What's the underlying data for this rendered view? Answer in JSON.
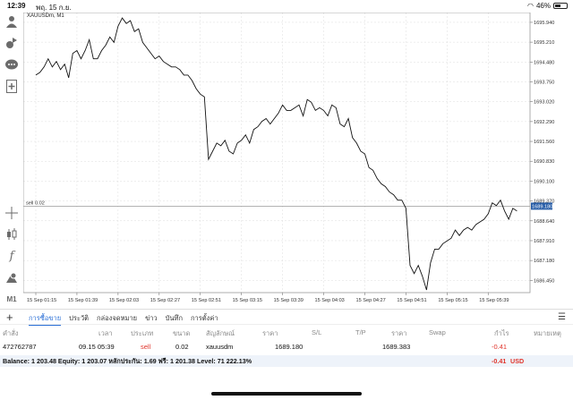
{
  "status": {
    "time": "12:39",
    "date": "พฤ. 15 ก.ย.",
    "battery": "46%",
    "battery_level": 0.46
  },
  "chart": {
    "symbol_label": "XAUUSDm, M1",
    "sell_line_label": "sell 0.02",
    "current_price": "1689.180",
    "colors": {
      "line": "#111111",
      "grid": "#dddddd",
      "price_badge": "#2a5fa8",
      "sell_line": "#999999"
    }
  },
  "chart_data": {
    "type": "line",
    "y_ticks": [
      "1695.940",
      "1695.210",
      "1694.480",
      "1693.750",
      "1693.020",
      "1692.290",
      "1691.560",
      "1690.830",
      "1690.100",
      "1689.370",
      "1688.640",
      "1687.910",
      "1687.180",
      "1686.450"
    ],
    "x_ticks": [
      "15 Sep 01:15",
      "15 Sep 01:39",
      "15 Sep 02:03",
      "15 Sep 02:27",
      "15 Sep 02:51",
      "15 Sep 03:15",
      "15 Sep 03:39",
      "15 Sep 04:03",
      "15 Sep 04:27",
      "15 Sep 04:51",
      "15 Sep 05:15",
      "15 Sep 05:39"
    ],
    "ylim": [
      1686.0,
      1696.3
    ],
    "x_range": [
      0,
      118
    ],
    "x_tick_positions": [
      0,
      10,
      20,
      30,
      40,
      50,
      60,
      70,
      80,
      90,
      100,
      110
    ],
    "sell_level": 1689.18,
    "series": [
      {
        "x": [
          0,
          1,
          2,
          3,
          4,
          5,
          6,
          7,
          8,
          9,
          10,
          11,
          12,
          13,
          14,
          15,
          16,
          17,
          18,
          19,
          20,
          21,
          22,
          23,
          24,
          25,
          26,
          27,
          28,
          29,
          30,
          31,
          32,
          33,
          34,
          35,
          36,
          37,
          38,
          39,
          40,
          41,
          42,
          43,
          44,
          45,
          46,
          47,
          48,
          49,
          50,
          51,
          52,
          53,
          54,
          55,
          56,
          57,
          58,
          59,
          60,
          61,
          62,
          63,
          64,
          65,
          66,
          67,
          68,
          69,
          70,
          71,
          72,
          73,
          74,
          75,
          76,
          77,
          78,
          79,
          80,
          81,
          82,
          83,
          84,
          85,
          86,
          87,
          88,
          89,
          90,
          91,
          92,
          93,
          94,
          95,
          96,
          97,
          98,
          99,
          100,
          101,
          102,
          103,
          104,
          105,
          106,
          107,
          108,
          109,
          110,
          111,
          112,
          113,
          114,
          115,
          116,
          117
        ],
        "values": [
          1694.0,
          1694.1,
          1694.3,
          1694.6,
          1694.3,
          1694.5,
          1694.2,
          1694.4,
          1693.9,
          1694.8,
          1694.9,
          1694.6,
          1694.9,
          1695.3,
          1694.6,
          1694.6,
          1694.9,
          1695.1,
          1695.4,
          1695.2,
          1695.8,
          1696.1,
          1695.9,
          1696.0,
          1695.6,
          1695.7,
          1695.2,
          1695.0,
          1694.8,
          1694.6,
          1694.7,
          1694.5,
          1694.4,
          1694.3,
          1694.3,
          1694.2,
          1694.0,
          1694.0,
          1693.8,
          1693.5,
          1693.3,
          1693.2,
          1690.9,
          1691.2,
          1691.5,
          1691.4,
          1691.6,
          1691.2,
          1691.1,
          1691.5,
          1691.6,
          1691.8,
          1691.5,
          1692.0,
          1692.1,
          1692.3,
          1692.4,
          1692.2,
          1692.4,
          1692.6,
          1692.9,
          1692.7,
          1692.7,
          1692.8,
          1692.9,
          1692.5,
          1693.1,
          1693.0,
          1692.7,
          1692.8,
          1692.7,
          1692.5,
          1692.9,
          1692.8,
          1692.2,
          1692.1,
          1692.4,
          1691.7,
          1691.5,
          1691.2,
          1691.1,
          1690.6,
          1690.5,
          1690.2,
          1690.0,
          1689.9,
          1689.7,
          1689.6,
          1689.4,
          1689.4,
          1689.1,
          1687.0,
          1686.7,
          1687.0,
          1686.6,
          1686.1,
          1687.1,
          1687.6,
          1687.6,
          1687.8,
          1687.9,
          1688.0,
          1688.3,
          1688.1,
          1688.3,
          1688.4,
          1688.3,
          1688.5,
          1688.6,
          1688.7,
          1688.9,
          1689.3,
          1689.2,
          1689.4,
          1689.0,
          1688.7,
          1689.1,
          1689.0
        ]
      }
    ]
  },
  "sidebar": {
    "icons": [
      "person-icon",
      "exchange-icon",
      "chat-icon",
      "add-document-icon",
      "crosshair-icon",
      "candles-icon",
      "function-icon",
      "objects-icon",
      "timeframe-icon"
    ],
    "timeframe": "M1"
  },
  "tabs": [
    {
      "label": "การซื้อขาย",
      "active": true
    },
    {
      "label": "ประวัติ",
      "active": false
    },
    {
      "label": "กล่องจดหมาย",
      "active": false
    },
    {
      "label": "ข่าว",
      "active": false
    },
    {
      "label": "บันทึก",
      "active": false
    },
    {
      "label": "การตั้งค่า",
      "active": false
    }
  ],
  "columns": {
    "order": "คำสั่ง",
    "time": "เวลา",
    "type": "ประเภท",
    "size": "ขนาด",
    "symbol": "สัญลักษณ์",
    "price": "ราคา",
    "sl": "S/L",
    "tp": "T/P",
    "price2": "ราคา",
    "swap": "Swap",
    "profit": "กำไร",
    "note": "หมายเหตุ"
  },
  "position": {
    "order": "472762787",
    "time": "09.15 05:39",
    "type": "sell",
    "size": "0.02",
    "symbol": "xauusdm",
    "open_price": "1689.180",
    "sl": "",
    "tp": "",
    "current_price": "1689.383",
    "swap": "",
    "profit": "-0.41",
    "note": ""
  },
  "balance": {
    "text": "Balance: 1 203.48 Equity: 1 203.07 หลักประกัน: 1.69 ฟรี: 1 201.38 Level: 71 222.13%",
    "profit": "-0.41",
    "currency": "USD"
  }
}
